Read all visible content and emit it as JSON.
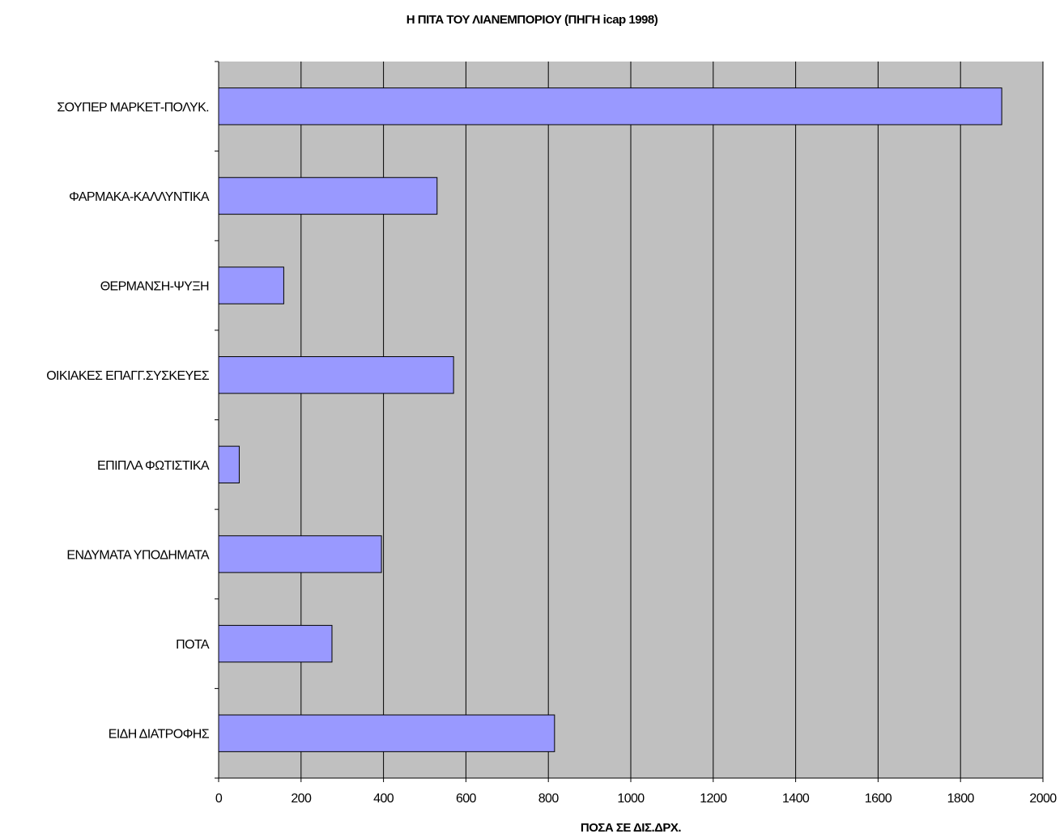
{
  "chart_data": {
    "type": "bar",
    "orientation": "horizontal",
    "title": "Η ΠΙΤΑ ΤΟΥ ΛΙΑΝΕΜΠΟΡΙΟΥ (ΠΗΓΗ icap 1998)",
    "xlabel": "ΠΟΣΑ ΣΕ ΔΙΣ.ΔΡΧ.",
    "ylabel": "",
    "xlim": [
      0,
      2000
    ],
    "x_ticks": [
      0,
      200,
      400,
      600,
      800,
      1000,
      1200,
      1400,
      1600,
      1800,
      2000
    ],
    "categories": [
      "ΣΟΥΠΕΡ ΜΑΡΚΕΤ-ΠΟΛΥΚ.",
      "ΦΑΡΜΑΚΑ-ΚΑΛΛΥΝΤΙΚΑ",
      "ΘΕΡΜΑΝΣΗ-ΨΥΞΗ",
      "ΟΙΚΙΑΚΕΣ ΕΠΑΓΓ.ΣΥΣΚΕΥΕΣ",
      "ΕΠΙΠΛΑ ΦΩΤΙΣΤΙΚΑ",
      "ΕΝΔΥΜΑΤΑ ΥΠΟΔΗΜΑΤΑ",
      "ΠΟΤΑ",
      "ΕΙΔΗ ΔΙΑΤΡΟΦΗΣ"
    ],
    "values": [
      1900,
      530,
      158,
      570,
      50,
      395,
      275,
      815
    ],
    "grid": "vertical",
    "legend": "none",
    "colors": {
      "plot_background": "#c0c0c0",
      "bar_fill": "#9999ff",
      "bar_stroke": "#000000",
      "grid": "#000000"
    }
  }
}
